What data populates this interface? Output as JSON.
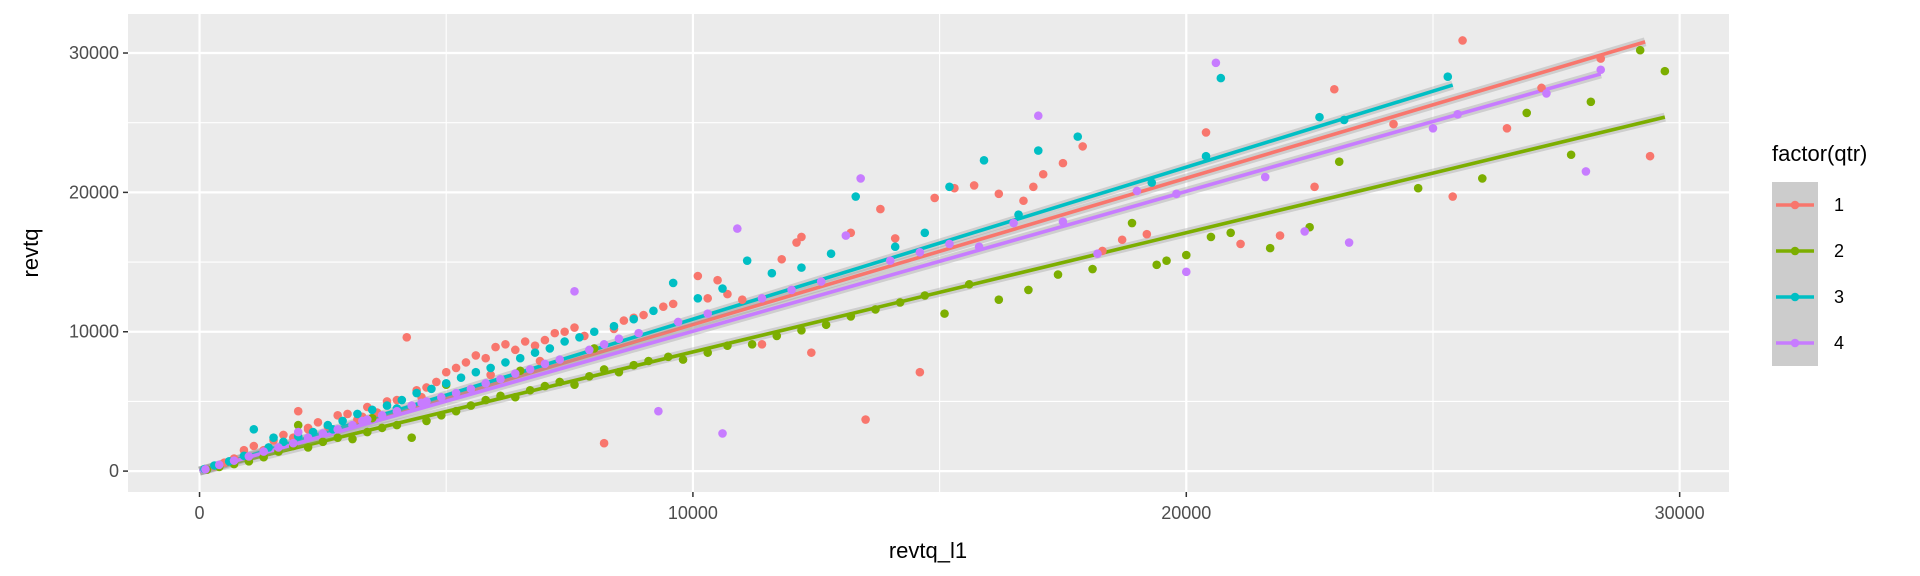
{
  "chart_data": {
    "type": "scatter",
    "xlabel": "revtq_l1",
    "ylabel": "revtq",
    "xlim": [
      -1450,
      31000
    ],
    "ylim": [
      -1500,
      32800
    ],
    "x_ticks": [
      0,
      10000,
      20000,
      30000
    ],
    "y_ticks": [
      0,
      10000,
      20000,
      30000
    ],
    "x_tick_labels": [
      "0",
      "10000",
      "20000",
      "30000"
    ],
    "y_tick_labels": [
      "0",
      "10000",
      "20000",
      "30000"
    ],
    "grid": true,
    "legend": {
      "title": "factor(qtr)",
      "position": "right"
    },
    "series": [
      {
        "name": "1",
        "color": "#F8766D",
        "fit": {
          "x": [
            0,
            29300
          ],
          "y": [
            0,
            30800
          ]
        },
        "points": [
          [
            120,
            150
          ],
          [
            300,
            350
          ],
          [
            500,
            600
          ],
          [
            700,
            900
          ],
          [
            900,
            1500
          ],
          [
            1100,
            1800
          ],
          [
            1300,
            1500
          ],
          [
            1500,
            2200
          ],
          [
            1700,
            2600
          ],
          [
            1900,
            2400
          ],
          [
            2000,
            4300
          ],
          [
            2200,
            3000
          ],
          [
            2400,
            3500
          ],
          [
            2600,
            3200
          ],
          [
            2800,
            4000
          ],
          [
            3000,
            4100
          ],
          [
            3200,
            3700
          ],
          [
            3400,
            4600
          ],
          [
            3600,
            4200
          ],
          [
            3800,
            5000
          ],
          [
            4000,
            5100
          ],
          [
            4200,
            9600
          ],
          [
            4400,
            5800
          ],
          [
            4600,
            6000
          ],
          [
            4800,
            6400
          ],
          [
            5000,
            7100
          ],
          [
            5200,
            7400
          ],
          [
            5400,
            7800
          ],
          [
            5600,
            8300
          ],
          [
            5800,
            8100
          ],
          [
            6000,
            8900
          ],
          [
            6200,
            9100
          ],
          [
            6400,
            8700
          ],
          [
            6600,
            9300
          ],
          [
            6800,
            9000
          ],
          [
            7000,
            9400
          ],
          [
            7200,
            9900
          ],
          [
            7400,
            10000
          ],
          [
            7600,
            10300
          ],
          [
            7800,
            9700
          ],
          [
            8200,
            2000
          ],
          [
            8400,
            10200
          ],
          [
            8600,
            10800
          ],
          [
            8800,
            11000
          ],
          [
            9000,
            11200
          ],
          [
            9400,
            11800
          ],
          [
            9600,
            12000
          ],
          [
            10100,
            14000
          ],
          [
            10300,
            12400
          ],
          [
            10500,
            13700
          ],
          [
            10700,
            12700
          ],
          [
            11000,
            12300
          ],
          [
            11400,
            9100
          ],
          [
            11800,
            15200
          ],
          [
            12100,
            16400
          ],
          [
            12200,
            16800
          ],
          [
            12400,
            8500
          ],
          [
            13200,
            17100
          ],
          [
            13500,
            3700
          ],
          [
            13800,
            18800
          ],
          [
            14100,
            16700
          ],
          [
            14600,
            7100
          ],
          [
            14900,
            19600
          ],
          [
            15300,
            20300
          ],
          [
            15700,
            20500
          ],
          [
            16200,
            19900
          ],
          [
            16700,
            19400
          ],
          [
            16900,
            20400
          ],
          [
            17100,
            21300
          ],
          [
            17500,
            22100
          ],
          [
            17900,
            23300
          ],
          [
            18300,
            15800
          ],
          [
            18700,
            16600
          ],
          [
            19200,
            17000
          ],
          [
            20400,
            24300
          ],
          [
            21100,
            16300
          ],
          [
            21900,
            16900
          ],
          [
            22600,
            20400
          ],
          [
            23000,
            27400
          ],
          [
            24200,
            24900
          ],
          [
            25600,
            30900
          ],
          [
            25400,
            19700
          ],
          [
            26500,
            24600
          ],
          [
            27200,
            27500
          ],
          [
            28400,
            29600
          ],
          [
            29400,
            22600
          ],
          [
            2200,
            3100
          ],
          [
            3300,
            3900
          ],
          [
            4500,
            5300
          ],
          [
            5900,
            6900
          ],
          [
            6900,
            7900
          ]
        ]
      },
      {
        "name": "2",
        "color": "#7CAE00",
        "fit": {
          "x": [
            0,
            29700
          ],
          "y": [
            0,
            25400
          ]
        },
        "points": [
          [
            150,
            100
          ],
          [
            400,
            300
          ],
          [
            700,
            500
          ],
          [
            1000,
            700
          ],
          [
            1300,
            1000
          ],
          [
            1600,
            1400
          ],
          [
            1900,
            1800
          ],
          [
            2200,
            1700
          ],
          [
            2500,
            2100
          ],
          [
            2800,
            2400
          ],
          [
            3100,
            2300
          ],
          [
            3400,
            2800
          ],
          [
            3700,
            3100
          ],
          [
            4000,
            3300
          ],
          [
            4300,
            2400
          ],
          [
            4600,
            3600
          ],
          [
            4900,
            4000
          ],
          [
            5200,
            4300
          ],
          [
            5500,
            4700
          ],
          [
            5800,
            5100
          ],
          [
            6100,
            5400
          ],
          [
            6400,
            5300
          ],
          [
            6700,
            5800
          ],
          [
            7000,
            6100
          ],
          [
            7300,
            6400
          ],
          [
            7600,
            6200
          ],
          [
            7900,
            6800
          ],
          [
            8200,
            7300
          ],
          [
            8500,
            7100
          ],
          [
            8800,
            7600
          ],
          [
            9100,
            7900
          ],
          [
            9500,
            8200
          ],
          [
            9800,
            8000
          ],
          [
            10300,
            8500
          ],
          [
            10700,
            9000
          ],
          [
            11200,
            9100
          ],
          [
            11700,
            9700
          ],
          [
            12200,
            10100
          ],
          [
            12700,
            10500
          ],
          [
            13200,
            11100
          ],
          [
            13700,
            11600
          ],
          [
            14200,
            12100
          ],
          [
            14700,
            12600
          ],
          [
            15100,
            11300
          ],
          [
            15600,
            13400
          ],
          [
            16200,
            12300
          ],
          [
            16800,
            13000
          ],
          [
            17400,
            14100
          ],
          [
            18100,
            14500
          ],
          [
            18900,
            17800
          ],
          [
            19400,
            14800
          ],
          [
            19600,
            15100
          ],
          [
            20000,
            15500
          ],
          [
            20500,
            16800
          ],
          [
            20900,
            17100
          ],
          [
            21700,
            16000
          ],
          [
            22500,
            17500
          ],
          [
            23100,
            22200
          ],
          [
            24700,
            20300
          ],
          [
            26000,
            21000
          ],
          [
            26900,
            25700
          ],
          [
            27800,
            22700
          ],
          [
            28200,
            26500
          ],
          [
            29200,
            30200
          ],
          [
            29700,
            28700
          ],
          [
            2000,
            3300
          ],
          [
            3500,
            3800
          ],
          [
            5000,
            6200
          ],
          [
            6500,
            7200
          ],
          [
            8000,
            8800
          ]
        ]
      },
      {
        "name": "3",
        "color": "#00BFC4",
        "fit": {
          "x": [
            0,
            25400
          ],
          "y": [
            0,
            27700
          ]
        },
        "points": [
          [
            100,
            150
          ],
          [
            300,
            400
          ],
          [
            600,
            700
          ],
          [
            900,
            1100
          ],
          [
            1100,
            3000
          ],
          [
            1400,
            1700
          ],
          [
            1700,
            2100
          ],
          [
            2000,
            2500
          ],
          [
            2300,
            2800
          ],
          [
            2600,
            3300
          ],
          [
            2900,
            3600
          ],
          [
            3200,
            4100
          ],
          [
            3500,
            4400
          ],
          [
            3800,
            4700
          ],
          [
            4100,
            5100
          ],
          [
            4400,
            5600
          ],
          [
            4700,
            5900
          ],
          [
            5000,
            6300
          ],
          [
            5300,
            6700
          ],
          [
            5600,
            7100
          ],
          [
            5900,
            7400
          ],
          [
            6200,
            7800
          ],
          [
            6500,
            8100
          ],
          [
            6800,
            8500
          ],
          [
            7100,
            8800
          ],
          [
            7400,
            9300
          ],
          [
            7700,
            9600
          ],
          [
            8000,
            10000
          ],
          [
            8400,
            10400
          ],
          [
            8800,
            10900
          ],
          [
            9200,
            11500
          ],
          [
            9600,
            13500
          ],
          [
            10100,
            12400
          ],
          [
            10600,
            13100
          ],
          [
            11100,
            15100
          ],
          [
            11600,
            14200
          ],
          [
            12200,
            14600
          ],
          [
            12800,
            15600
          ],
          [
            13300,
            19700
          ],
          [
            14100,
            16100
          ],
          [
            14700,
            17100
          ],
          [
            15200,
            20400
          ],
          [
            15900,
            22300
          ],
          [
            16600,
            18400
          ],
          [
            17000,
            23000
          ],
          [
            17800,
            24000
          ],
          [
            19300,
            20700
          ],
          [
            20400,
            22600
          ],
          [
            20700,
            28200
          ],
          [
            22700,
            25400
          ],
          [
            23200,
            25200
          ],
          [
            25300,
            28300
          ],
          [
            1500,
            2400
          ],
          [
            2700,
            3000
          ],
          [
            4000,
            4500
          ]
        ]
      },
      {
        "name": "4",
        "color": "#C77CFF",
        "fit": {
          "x": [
            0,
            28400
          ],
          "y": [
            0,
            28500
          ]
        },
        "points": [
          [
            120,
            130
          ],
          [
            400,
            450
          ],
          [
            700,
            750
          ],
          [
            1000,
            1050
          ],
          [
            1300,
            1400
          ],
          [
            1600,
            1700
          ],
          [
            1900,
            2000
          ],
          [
            2200,
            2400
          ],
          [
            2500,
            2700
          ],
          [
            2800,
            3000
          ],
          [
            3100,
            3300
          ],
          [
            3400,
            3700
          ],
          [
            3700,
            4000
          ],
          [
            4000,
            4300
          ],
          [
            4300,
            4700
          ],
          [
            4600,
            5000
          ],
          [
            4900,
            5300
          ],
          [
            5200,
            5600
          ],
          [
            5500,
            5900
          ],
          [
            5800,
            6300
          ],
          [
            6100,
            6600
          ],
          [
            6400,
            7000
          ],
          [
            6700,
            7300
          ],
          [
            7000,
            7700
          ],
          [
            7300,
            8000
          ],
          [
            7600,
            12900
          ],
          [
            7900,
            8700
          ],
          [
            8200,
            9100
          ],
          [
            8500,
            9500
          ],
          [
            8900,
            9900
          ],
          [
            9300,
            4300
          ],
          [
            9700,
            10700
          ],
          [
            10300,
            11300
          ],
          [
            10600,
            2700
          ],
          [
            10900,
            17400
          ],
          [
            11400,
            12400
          ],
          [
            12000,
            13000
          ],
          [
            12600,
            13600
          ],
          [
            13100,
            16900
          ],
          [
            13400,
            21000
          ],
          [
            14000,
            15100
          ],
          [
            14600,
            15700
          ],
          [
            15200,
            16300
          ],
          [
            15800,
            16100
          ],
          [
            16500,
            17800
          ],
          [
            17000,
            25500
          ],
          [
            17500,
            17900
          ],
          [
            18200,
            15600
          ],
          [
            19000,
            20100
          ],
          [
            19800,
            19900
          ],
          [
            20000,
            14300
          ],
          [
            20600,
            29300
          ],
          [
            21600,
            21100
          ],
          [
            22400,
            17200
          ],
          [
            23300,
            16400
          ],
          [
            25000,
            24600
          ],
          [
            25500,
            25600
          ],
          [
            27300,
            27100
          ],
          [
            28100,
            21500
          ],
          [
            28400,
            28800
          ],
          [
            2000,
            2800
          ],
          [
            3300,
            3600
          ],
          [
            4500,
            4900
          ]
        ]
      }
    ]
  }
}
